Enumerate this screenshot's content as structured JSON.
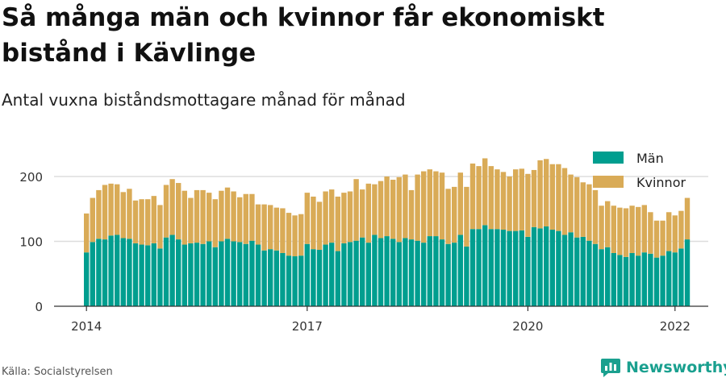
{
  "header": {
    "title": "Så många män och kvinnor får ekonomiskt bistånd i Kävlinge",
    "subtitle": "Antal vuxna biståndsmottagare månad för månad"
  },
  "footer": {
    "source": "Källa: Socialstyrelsen",
    "brand": "Newsworthy"
  },
  "colors": {
    "man": "#009e8f",
    "kvinnor": "#d9ab57",
    "grid": "#dddddd",
    "axis": "#333333",
    "brand": "#1aa08f"
  },
  "chart_data": {
    "type": "bar",
    "stacked": true,
    "x_tick_labels": [
      "2014",
      "2017",
      "2020",
      "2022"
    ],
    "y_tick_labels": [
      "0",
      "100",
      "200"
    ],
    "ylim": [
      0,
      240
    ],
    "grid": true,
    "legend_position": "top-right",
    "series": [
      {
        "name": "Män",
        "values": [
          83,
          99,
          104,
          103,
          109,
          110,
          105,
          104,
          97,
          95,
          94,
          97,
          89,
          106,
          110,
          103,
          95,
          97,
          98,
          96,
          100,
          91,
          100,
          104,
          100,
          99,
          96,
          101,
          95,
          86,
          88,
          86,
          82,
          78,
          77,
          78,
          96,
          88,
          87,
          95,
          98,
          85,
          97,
          99,
          101,
          106,
          98,
          110,
          105,
          108,
          104,
          99,
          105,
          103,
          101,
          98,
          108,
          108,
          103,
          96,
          98,
          110,
          92,
          119,
          119,
          125,
          119,
          119,
          118,
          116,
          116,
          117,
          107,
          122,
          120,
          123,
          118,
          116,
          110,
          114,
          106,
          107,
          101,
          96,
          88,
          91,
          82,
          79,
          76,
          82,
          78,
          83,
          81,
          75,
          78,
          85,
          83,
          89,
          103
        ],
        "color_key": "man"
      },
      {
        "name": "Kvinnor",
        "values": [
          60,
          68,
          75,
          84,
          80,
          78,
          71,
          77,
          66,
          70,
          71,
          73,
          67,
          81,
          86,
          87,
          83,
          70,
          81,
          83,
          75,
          74,
          78,
          79,
          77,
          69,
          77,
          72,
          62,
          71,
          68,
          66,
          69,
          66,
          63,
          64,
          79,
          81,
          74,
          82,
          82,
          84,
          78,
          78,
          95,
          74,
          91,
          78,
          88,
          92,
          91,
          100,
          98,
          76,
          102,
          110,
          103,
          100,
          103,
          85,
          86,
          96,
          92,
          101,
          97,
          103,
          97,
          92,
          89,
          84,
          95,
          95,
          97,
          88,
          105,
          104,
          101,
          103,
          103,
          89,
          93,
          84,
          87,
          83,
          67,
          71,
          73,
          73,
          75,
          73,
          75,
          73,
          64,
          57,
          54,
          60,
          57,
          58,
          64
        ],
        "color_key": "kvinnor"
      }
    ]
  }
}
